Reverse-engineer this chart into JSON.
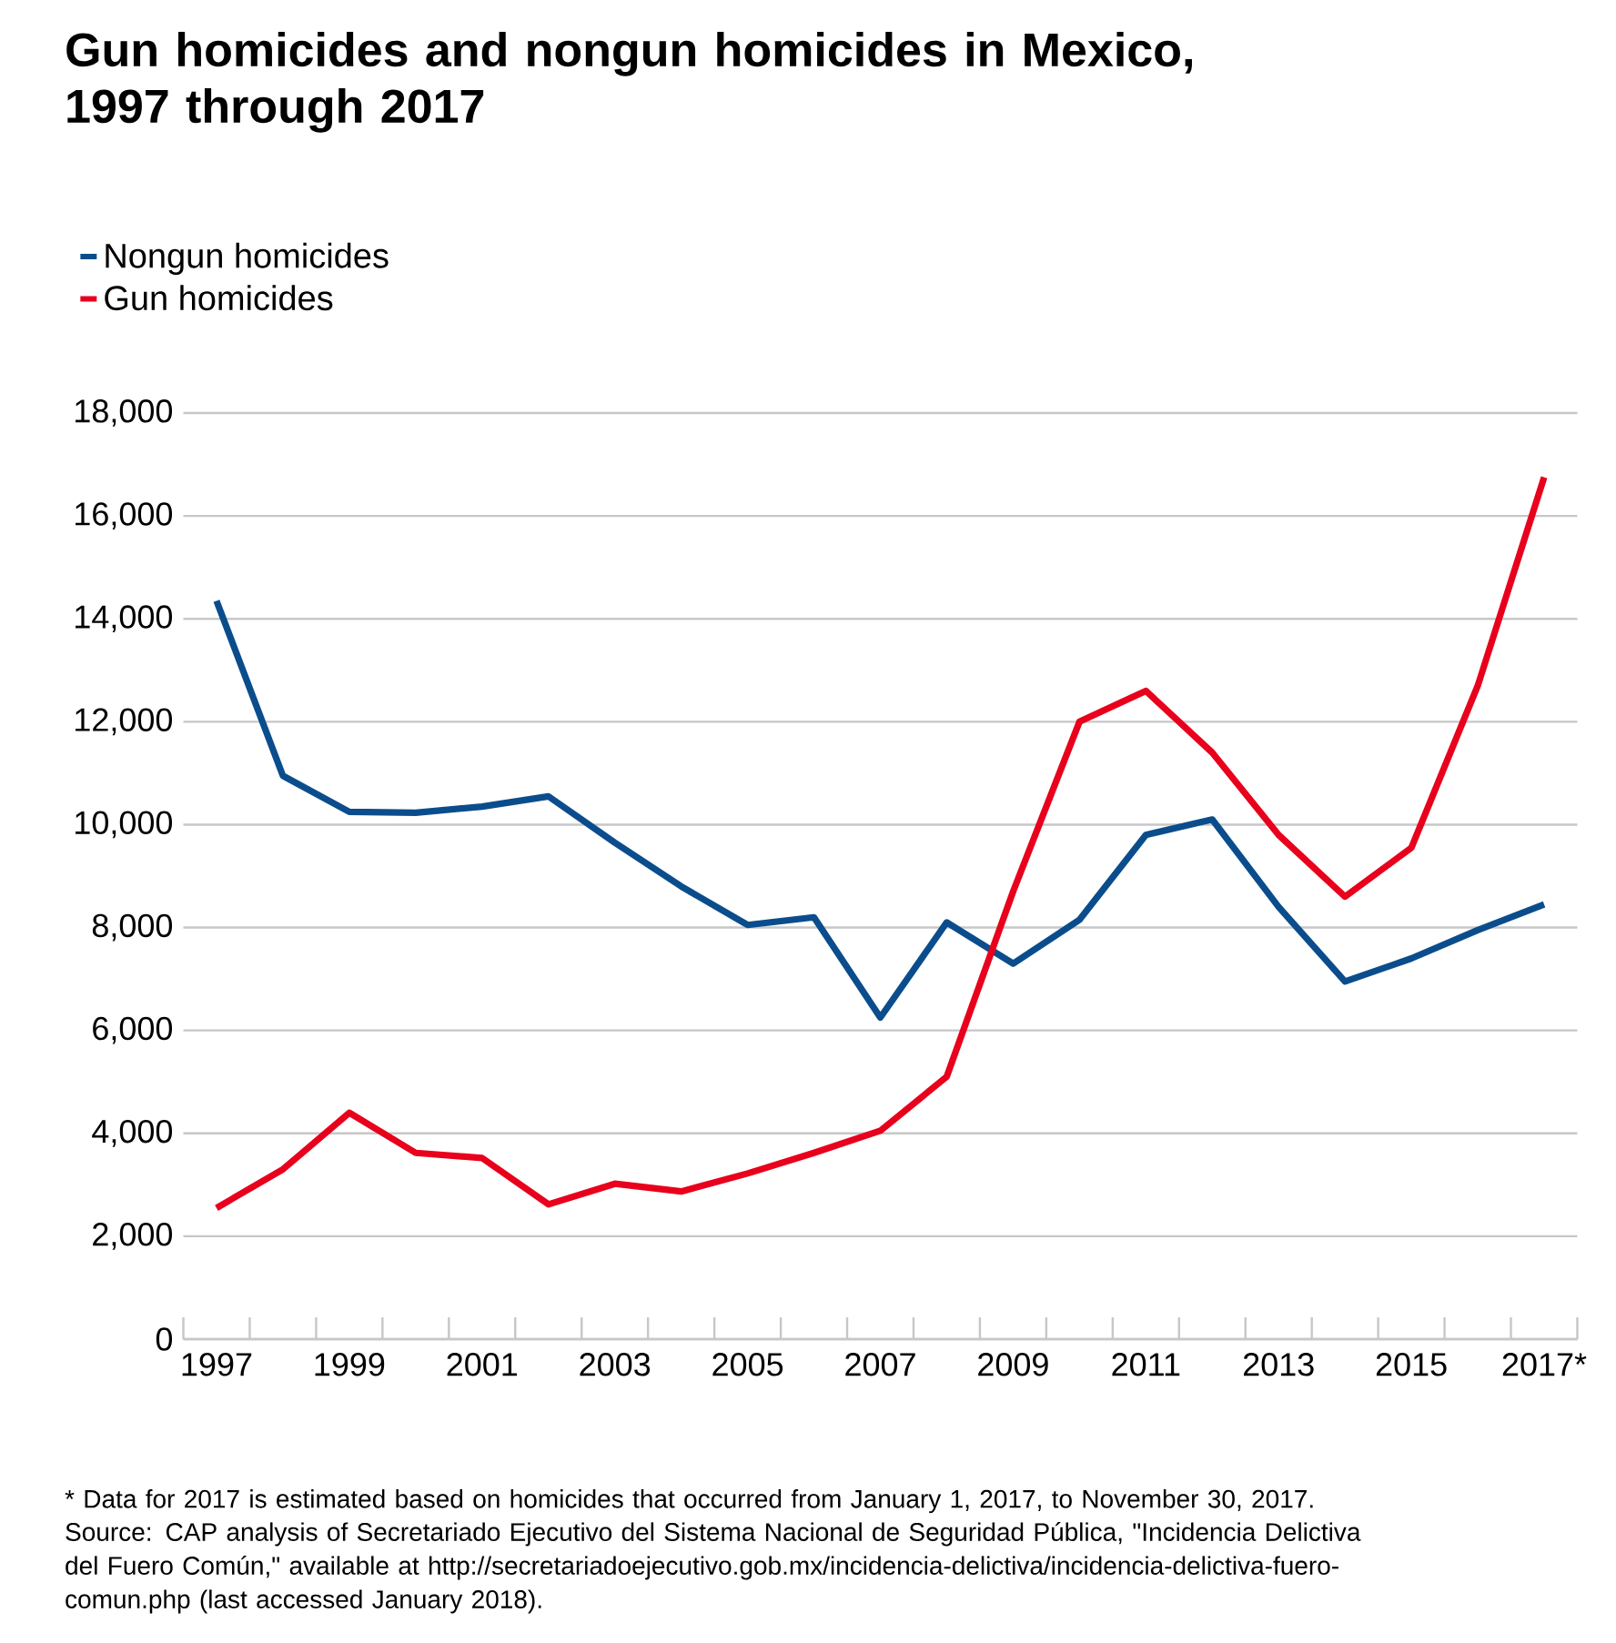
{
  "chart_data": {
    "type": "line",
    "title": "Gun homicides and nongun homicides in Mexico, 1997 through 2017",
    "categories": [
      "1997",
      null,
      "1999",
      null,
      "2001",
      null,
      "2003",
      null,
      "2005",
      null,
      "2007",
      null,
      "2009",
      null,
      "2011",
      null,
      "2013",
      null,
      "2015",
      null,
      "2017*"
    ],
    "series": [
      {
        "name": "Nongun homicides",
        "color": "#0b4d8c",
        "values": [
          14350,
          10950,
          10250,
          10230,
          10350,
          10550,
          9650,
          8800,
          8050,
          8200,
          6250,
          8100,
          7300,
          8150,
          9800,
          10100,
          8400,
          6950,
          7400,
          7950,
          8450
        ]
      },
      {
        "name": "Gun homicides",
        "color": "#e8001c",
        "values": [
          2550,
          3300,
          4400,
          3620,
          3520,
          2620,
          3020,
          2870,
          3220,
          3620,
          4050,
          5100,
          8700,
          12000,
          12600,
          11400,
          9800,
          8600,
          9550,
          12700,
          16750
        ]
      }
    ],
    "ylim": [
      0,
      18000
    ],
    "yticks": [
      0,
      {
        "value": 2000,
        "label": "2,000"
      },
      {
        "value": 4000,
        "label": "4,000"
      },
      {
        "value": 6000,
        "label": "6,000"
      },
      {
        "value": 8000,
        "label": "8,000"
      },
      {
        "value": 10000,
        "label": "10,000"
      },
      {
        "value": 12000,
        "label": "12,000"
      },
      {
        "value": 14000,
        "label": "14,000"
      },
      {
        "value": 16000,
        "label": "16,000"
      },
      {
        "value": 18000,
        "label": "18,000"
      }
    ],
    "grid": "y",
    "legend": "top left",
    "line_style": "solid",
    "marker": "none",
    "annotations": [
      "* Data for 2017 is estimated based on homicides that occurred from January 1, 2017, to November 30, 2017.",
      "Source: CAP analysis of Secretariado Ejecutivo del Sistema Nacional de Seguridad Pública, \"Incidencia Delictiva del Fuero Común,\" available at http://secretariadoejecutivo.gob.mx/incidencia-delictiva/incidencia-delictiva-fuero-comun.php (last accessed January 2018)."
    ]
  }
}
